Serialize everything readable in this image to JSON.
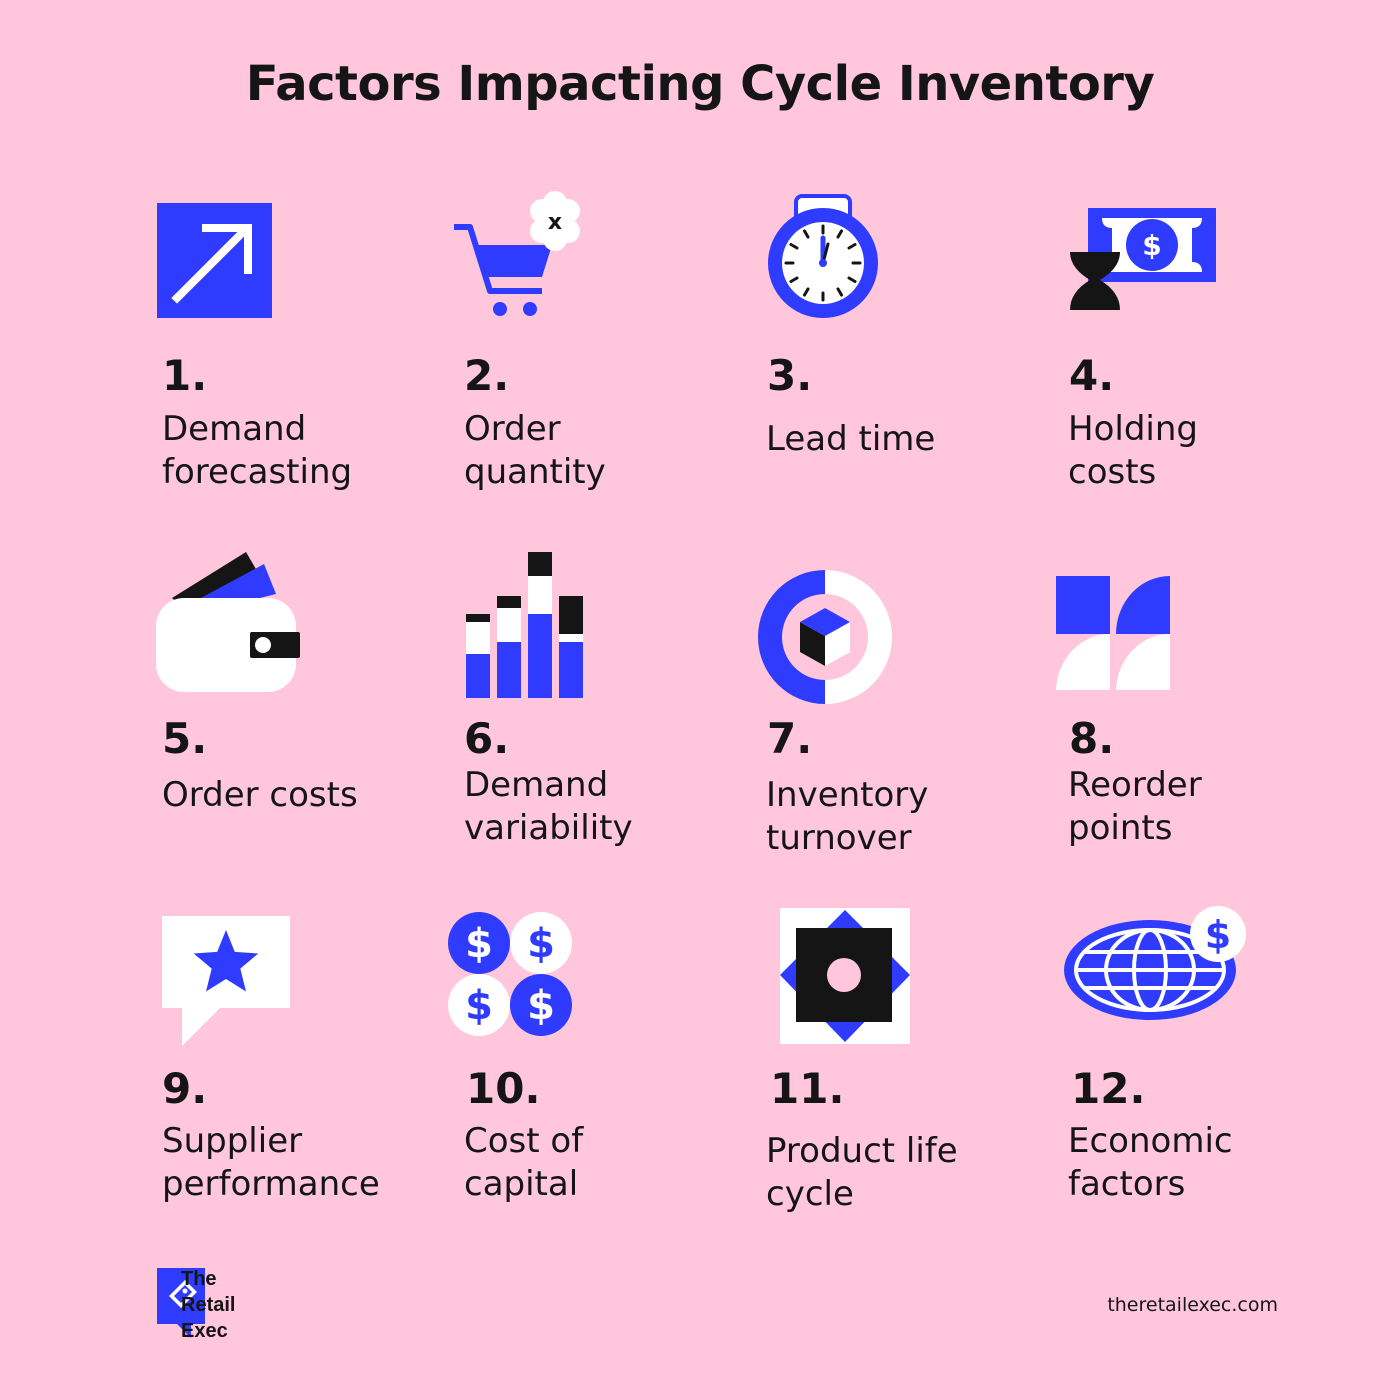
{
  "title": "Factors Impacting Cycle Inventory",
  "colors": {
    "background": "#ffc6dc",
    "accent": "#2f3cff",
    "ink": "#151515",
    "white": "#ffffff"
  },
  "factors": [
    {
      "number": "1.",
      "label_lines": [
        "Demand",
        "forecasting"
      ],
      "icon": "trend-arrow-icon"
    },
    {
      "number": "2.",
      "label_lines": [
        "Order",
        "quantity"
      ],
      "icon": "shopping-cart-icon"
    },
    {
      "number": "3.",
      "label_lines": [
        "Lead time"
      ],
      "icon": "stopwatch-icon"
    },
    {
      "number": "4.",
      "label_lines": [
        "Holding",
        "costs"
      ],
      "icon": "money-hourglass-icon"
    },
    {
      "number": "5.",
      "label_lines": [
        "Order costs"
      ],
      "icon": "wallet-icon"
    },
    {
      "number": "6.",
      "label_lines": [
        "Demand",
        "variability"
      ],
      "icon": "bar-chart-icon"
    },
    {
      "number": "7.",
      "label_lines": [
        "Inventory",
        "turnover"
      ],
      "icon": "cycle-box-icon"
    },
    {
      "number": "8.",
      "label_lines": [
        "Reorder",
        "points"
      ],
      "icon": "reorder-shapes-icon"
    },
    {
      "number": "9.",
      "label_lines": [
        "Supplier",
        "performance"
      ],
      "icon": "star-speech-bubble-icon"
    },
    {
      "number": "10.",
      "label_lines": [
        "Cost of",
        "capital"
      ],
      "icon": "dollar-coins-icon"
    },
    {
      "number": "11.",
      "label_lines": [
        "Product life",
        "cycle"
      ],
      "icon": "diamond-square-icon"
    },
    {
      "number": "12.",
      "label_lines": [
        "Economic",
        "factors"
      ],
      "icon": "globe-dollar-icon"
    }
  ],
  "icon_glyphs": {
    "cart_badge": "x",
    "dollar": "$"
  },
  "brand": {
    "line1": "The",
    "line2": "Retail",
    "line3": "Exec"
  },
  "website": "theretailexec.com"
}
